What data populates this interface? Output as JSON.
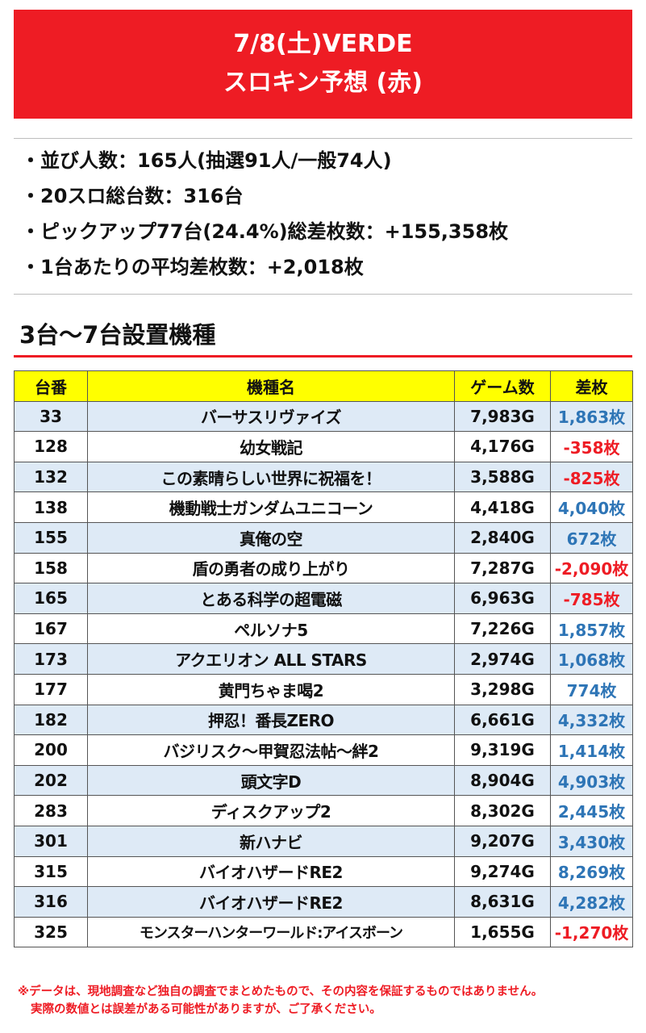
{
  "header": {
    "title_line1": "7/8(土)VERDE",
    "title_line2": "スロキン予想 (赤)"
  },
  "stats": [
    "・並び人数：165人(抽選91人/一般74人)",
    "・20スロ総台数：316台",
    "・ピックアップ77台(24.4%)総差枚数：+155,358枚",
    "・1台あたりの平均差枚数：+2,018枚"
  ],
  "section_title": "3台〜7台設置機種",
  "table": {
    "headers": [
      "台番",
      "機種名",
      "ゲーム数",
      "差枚"
    ],
    "rows": [
      {
        "no": "33",
        "name": "バーサスリヴァイズ",
        "games": "7,983G",
        "diff": "1,863枚",
        "sign": "pos"
      },
      {
        "no": "128",
        "name": "幼女戦記",
        "games": "4,176G",
        "diff": "-358枚",
        "sign": "neg"
      },
      {
        "no": "132",
        "name": "この素晴らしい世界に祝福を！",
        "games": "3,588G",
        "diff": "-825枚",
        "sign": "neg"
      },
      {
        "no": "138",
        "name": "機動戦士ガンダムユニコーン",
        "games": "4,418G",
        "diff": "4,040枚",
        "sign": "pos"
      },
      {
        "no": "155",
        "name": "真俺の空",
        "games": "2,840G",
        "diff": "672枚",
        "sign": "pos"
      },
      {
        "no": "158",
        "name": "盾の勇者の成り上がり",
        "games": "7,287G",
        "diff": "-2,090枚",
        "sign": "neg"
      },
      {
        "no": "165",
        "name": "とある科学の超電磁",
        "games": "6,963G",
        "diff": "-785枚",
        "sign": "neg"
      },
      {
        "no": "167",
        "name": "ペルソナ5",
        "games": "7,226G",
        "diff": "1,857枚",
        "sign": "pos"
      },
      {
        "no": "173",
        "name": "アクエリオン ALL STARS",
        "games": "2,974G",
        "diff": "1,068枚",
        "sign": "pos"
      },
      {
        "no": "177",
        "name": "黄門ちゃま喝2",
        "games": "3,298G",
        "diff": "774枚",
        "sign": "pos"
      },
      {
        "no": "182",
        "name": "押忍！番長ZERO",
        "games": "6,661G",
        "diff": "4,332枚",
        "sign": "pos"
      },
      {
        "no": "200",
        "name": "バジリスク〜甲賀忍法帖〜絆2",
        "games": "9,319G",
        "diff": "1,414枚",
        "sign": "pos"
      },
      {
        "no": "202",
        "name": "頭文字D",
        "games": "8,904G",
        "diff": "4,903枚",
        "sign": "pos"
      },
      {
        "no": "283",
        "name": "ディスクアップ2",
        "games": "8,302G",
        "diff": "2,445枚",
        "sign": "pos"
      },
      {
        "no": "301",
        "name": "新ハナビ",
        "games": "9,207G",
        "diff": "3,430枚",
        "sign": "pos"
      },
      {
        "no": "315",
        "name": "バイオハザードRE2",
        "games": "9,274G",
        "diff": "8,269枚",
        "sign": "pos"
      },
      {
        "no": "316",
        "name": "バイオハザードRE2",
        "games": "8,631G",
        "diff": "4,282枚",
        "sign": "pos"
      },
      {
        "no": "325",
        "name": "モンスターハンターワールド:アイスボーン",
        "games": "1,655G",
        "diff": "-1,270枚",
        "sign": "neg"
      }
    ]
  },
  "disclaimer": {
    "line1": "※データは、現地調査など独自の調査でまとめたもので、その内容を保証するものではありません。",
    "line2": "実際の数値とは誤差がある可能性がありますが、ご了承ください。"
  },
  "colors": {
    "banner": "#ee1c24",
    "header_row": "#ffff00",
    "stripe": "#deeaf6",
    "positive": "#2e75b6",
    "negative": "#ee1c24"
  }
}
